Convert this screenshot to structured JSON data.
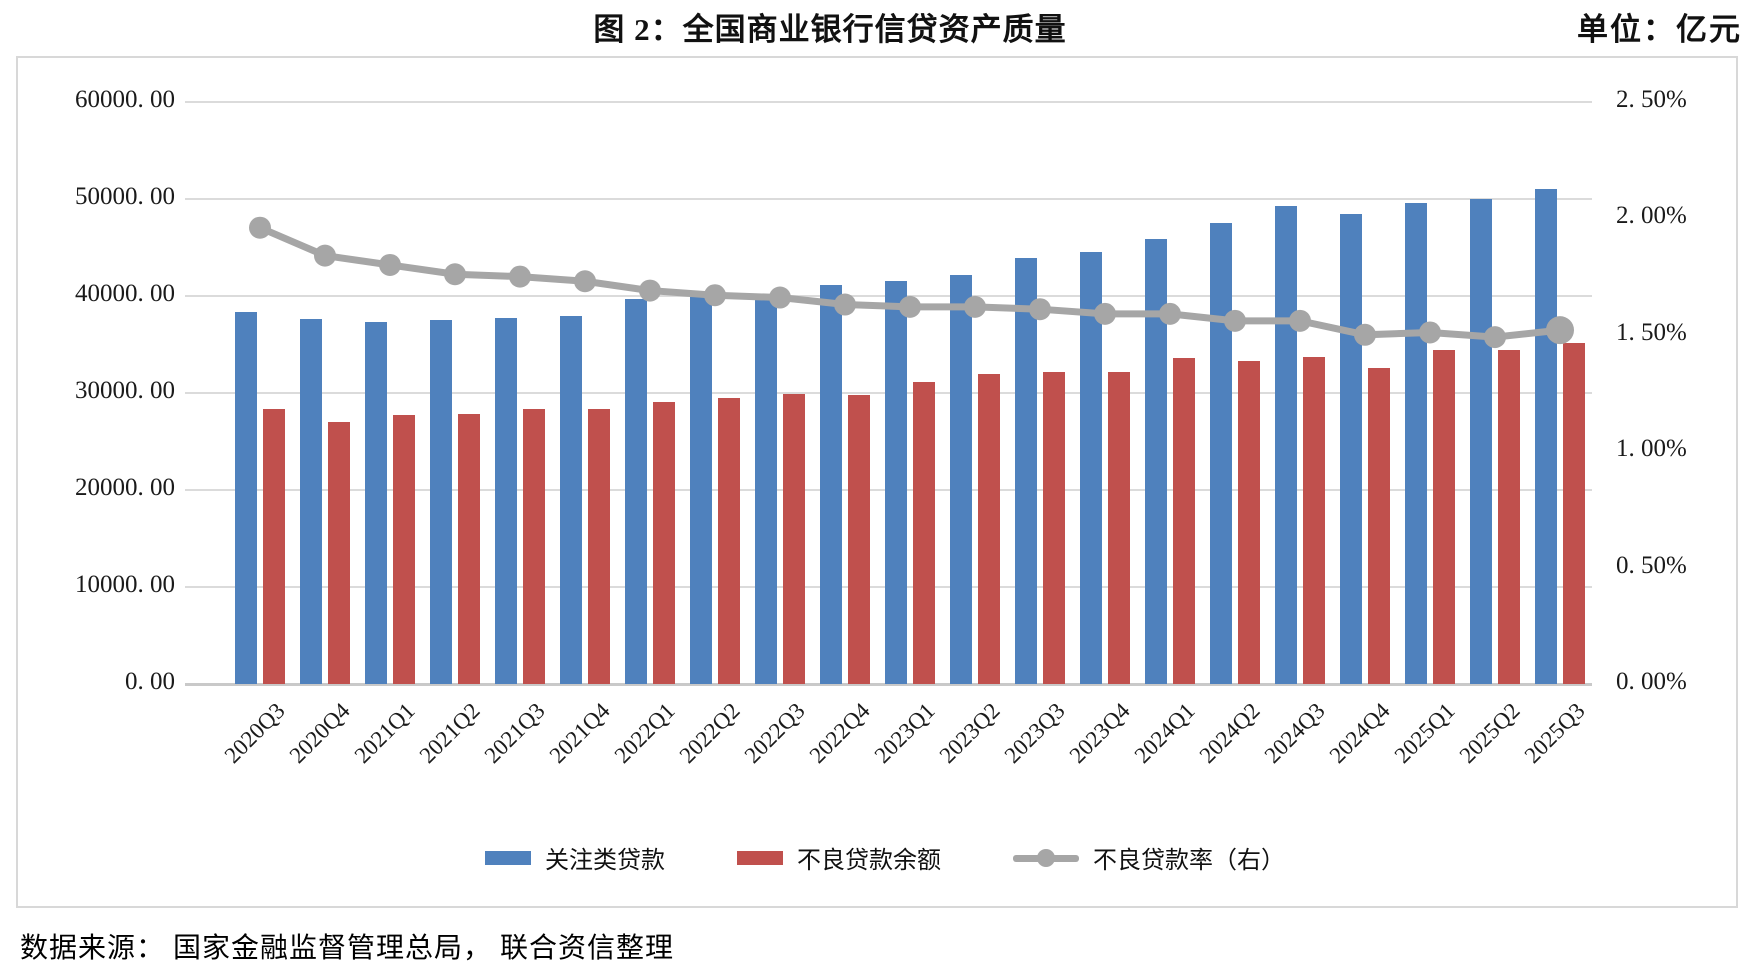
{
  "header": {
    "title": "图 2：全国商业银行信贷资产质量",
    "unit_label": "单位：亿元"
  },
  "source_note": "数据来源： 国家金融监督管理总局， 联合资信整理",
  "colors": {
    "special_mention_blue": "#4F81BD",
    "npl_balance_red": "#C0504D",
    "npl_ratio_gray": "#A6A6A6",
    "gridline": "#DBDBDB"
  },
  "chart_data": {
    "type": "combo",
    "title": "图 2：全国商业银行信贷资产质量",
    "unit_label": "单位：亿元",
    "grid": true,
    "legend_position": "bottom",
    "categories": [
      "2020Q3",
      "2020Q4",
      "2021Q1",
      "2021Q2",
      "2021Q3",
      "2021Q4",
      "2022Q1",
      "2022Q2",
      "2022Q3",
      "2022Q4",
      "2023Q1",
      "2023Q2",
      "2023Q3",
      "2023Q4",
      "2024Q1",
      "2024Q2",
      "2024Q3",
      "2024Q4",
      "2025Q1",
      "2025Q2",
      "2025Q3"
    ],
    "left_axis": {
      "min": 0,
      "max": 60000,
      "tick_labels": [
        "60000. 00",
        "50000. 00",
        "40000. 00",
        "30000. 00",
        "20000. 00",
        "10000. 00",
        "0. 00"
      ]
    },
    "right_axis": {
      "min": 0,
      "max": 2.5,
      "tick_labels": [
        "2. 50%",
        "2. 00%",
        "1. 50%",
        "1. 00%",
        "0. 50%",
        "0. 00%"
      ]
    },
    "series": [
      {
        "name": "关注类贷款",
        "type": "bar",
        "axis": "left",
        "color": "#4F81BD",
        "values": [
          38400,
          37600,
          37300,
          37500,
          37700,
          37900,
          39700,
          39900,
          39800,
          41100,
          41500,
          42200,
          43900,
          44500,
          45900,
          47500,
          49300,
          48500,
          49600,
          50000,
          51000
        ]
      },
      {
        "name": "不良贷款余额",
        "type": "bar",
        "axis": "left",
        "color": "#C0504D",
        "values": [
          28300,
          27000,
          27700,
          27800,
          28300,
          28400,
          29100,
          29500,
          29900,
          29800,
          31100,
          32000,
          32200,
          32200,
          33600,
          33300,
          33700,
          32600,
          34400,
          34400,
          35200
        ]
      },
      {
        "name": "不良贷款率（右）",
        "type": "line",
        "axis": "right",
        "color": "#A6A6A6",
        "values": [
          1.96,
          1.84,
          1.8,
          1.76,
          1.75,
          1.73,
          1.69,
          1.67,
          1.66,
          1.63,
          1.62,
          1.62,
          1.61,
          1.59,
          1.59,
          1.56,
          1.56,
          1.5,
          1.51,
          1.49,
          1.52
        ]
      }
    ]
  }
}
